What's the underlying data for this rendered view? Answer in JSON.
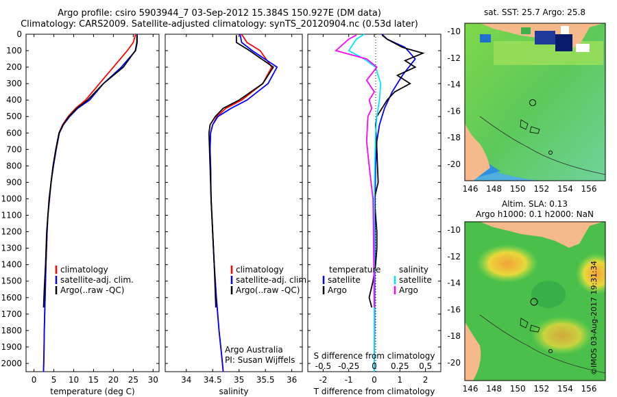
{
  "title": {
    "line1": "Argo profile: csiro 5903944_7 03-Sep-2012 15.384S 150.927E (DM data)",
    "line2": "Climatology: CARS2009. Satellite-adjusted climatology: synTS_20120904.nc (0.53d later)"
  },
  "stamp": "©IMOS 03-Aug-2017 19:31:34",
  "colors": {
    "clim": "#ff0000",
    "sat": "#0000ff",
    "argo": "#000000",
    "sat_s": "#00e5ff",
    "argo_s": "#ff00ff"
  },
  "chart_data": [
    {
      "type": "line",
      "name": "temperature-profile",
      "xlabel": "temperature (deg C)",
      "ylabel": "",
      "xlim": [
        -2,
        31.5
      ],
      "ylim": [
        2050,
        0
      ],
      "xticks": [
        "0",
        "5",
        "10",
        "15",
        "20",
        "25",
        "30"
      ],
      "yticks": [
        "0",
        "100",
        "200",
        "300",
        "400",
        "500",
        "600",
        "700",
        "800",
        "900",
        "1000",
        "1100",
        "1200",
        "1300",
        "1400",
        "1500",
        "1600",
        "1700",
        "1800",
        "1900",
        "2000"
      ],
      "legend": [
        "climatology",
        "satellite-adj. clim.",
        "Argo(..raw -QC)"
      ],
      "series": [
        {
          "name": "climatology",
          "color": "#ff0000",
          "x": [
            25.6,
            25.0,
            23.5,
            20.0,
            16.5,
            13.0,
            10.5,
            8.6,
            7.2,
            6.3,
            5.5,
            4.8,
            4.3,
            3.9,
            3.5,
            3.3,
            3.0,
            2.8,
            2.6,
            2.5,
            2.4
          ],
          "y": [
            0,
            50,
            100,
            200,
            300,
            400,
            450,
            500,
            550,
            600,
            700,
            800,
            900,
            1000,
            1100,
            1200,
            1400,
            1600,
            1800,
            1950,
            2050
          ]
        },
        {
          "name": "satellite-adj. clim.",
          "color": "#0000ff",
          "x": [
            26.0,
            26.0,
            25.6,
            22.0,
            17.5,
            14.0,
            11.0,
            9.0,
            7.4,
            6.4,
            5.6,
            4.9,
            4.3,
            3.9,
            3.5,
            3.3,
            3.0,
            2.8,
            2.6,
            2.5,
            2.4
          ],
          "y": [
            0,
            50,
            100,
            200,
            300,
            400,
            450,
            500,
            550,
            600,
            700,
            800,
            900,
            1000,
            1100,
            1200,
            1400,
            1600,
            1800,
            1950,
            2050
          ]
        },
        {
          "name": "Argo(..raw -QC)",
          "color": "#000000",
          "x": [
            25.9,
            25.9,
            25.5,
            22.5,
            17.5,
            13.5,
            10.8,
            8.8,
            7.3,
            6.3,
            5.5,
            4.8,
            4.3,
            3.8,
            3.5,
            3.2,
            2.9,
            2.6,
            2.4
          ],
          "y": [
            5,
            50,
            100,
            200,
            300,
            400,
            450,
            500,
            550,
            600,
            700,
            800,
            900,
            1000,
            1100,
            1200,
            1400,
            1550,
            1660
          ]
        }
      ]
    },
    {
      "type": "line",
      "name": "salinity-profile",
      "xlabel": "salinity",
      "xlim": [
        33.6,
        36.2
      ],
      "ylim": [
        2050,
        0
      ],
      "xticks": [
        "34",
        "34.5",
        "35",
        "35.5",
        "36"
      ],
      "legend": [
        "climatology",
        "satellite-adj. clim.",
        "Argo(..raw -QC)"
      ],
      "annotation": [
        "Argo Australia",
        "PI: Susan Wijffels"
      ],
      "series": [
        {
          "name": "climatology",
          "color": "#ff0000",
          "x": [
            35.05,
            35.15,
            35.4,
            35.62,
            35.45,
            35.05,
            34.75,
            34.58,
            34.5,
            34.46,
            34.45,
            34.46,
            34.47,
            34.5,
            34.53,
            34.57,
            34.62,
            34.67,
            34.7
          ],
          "y": [
            0,
            50,
            100,
            200,
            300,
            400,
            450,
            500,
            550,
            600,
            700,
            800,
            1000,
            1200,
            1400,
            1600,
            1800,
            1950,
            2050
          ]
        },
        {
          "name": "satellite-adj. clim.",
          "color": "#0000ff",
          "x": [
            35.02,
            35.05,
            35.25,
            35.72,
            35.55,
            35.15,
            34.85,
            34.6,
            34.5,
            34.46,
            34.45,
            34.46,
            34.47,
            34.5,
            34.53,
            34.57,
            34.62,
            34.67,
            34.7
          ],
          "y": [
            0,
            50,
            100,
            200,
            300,
            400,
            450,
            500,
            550,
            600,
            700,
            800,
            1000,
            1200,
            1400,
            1600,
            1800,
            1950,
            2050
          ]
        },
        {
          "name": "Argo(..raw -QC)",
          "color": "#000000",
          "x": [
            34.95,
            34.95,
            35.2,
            35.65,
            35.45,
            35.0,
            34.7,
            34.55,
            34.45,
            34.43,
            34.44,
            34.45,
            34.47,
            34.5,
            34.53,
            34.56
          ],
          "y": [
            5,
            50,
            100,
            200,
            300,
            400,
            450,
            500,
            550,
            600,
            700,
            800,
            1000,
            1200,
            1400,
            1660
          ]
        }
      ]
    },
    {
      "type": "line",
      "name": "difference-profile",
      "xlabel": "T difference from climatology",
      "xlabel_top": "S difference from climatology",
      "xlim": [
        -2.6,
        2.6
      ],
      "ylim": [
        2050,
        0
      ],
      "xticks": [
        "-2",
        "-1",
        "0",
        "1",
        "2"
      ],
      "xticks_top": [
        "-0.5",
        "-0.25",
        "0",
        "0.25",
        "0.5"
      ],
      "legend_titles": [
        "temperature",
        "salinity"
      ],
      "legend": [
        "satellite",
        "Argo",
        "satellite",
        "Argo"
      ],
      "series": [
        {
          "name": "T satellite",
          "color": "#0000ff",
          "x": [
            0.3,
            0.5,
            1.2,
            1.6,
            1.1,
            0.7,
            0.4,
            0.2,
            0.1,
            0.05,
            0.03,
            0.02,
            0.01,
            0.0
          ],
          "y": [
            0,
            30,
            80,
            150,
            250,
            350,
            450,
            550,
            650,
            800,
            1000,
            1400,
            1800,
            2050
          ]
        },
        {
          "name": "T Argo",
          "color": "#000000",
          "x": [
            0.3,
            0.5,
            1.1,
            1.9,
            1.2,
            1.6,
            0.9,
            1.4,
            0.8,
            0.5,
            0.3,
            0.1,
            0.05,
            0.1,
            0.15,
            0.0,
            0.05,
            0.1,
            0.1,
            0.05,
            -0.05,
            -0.2,
            -0.1
          ],
          "y": [
            5,
            30,
            80,
            115,
            160,
            200,
            250,
            300,
            350,
            400,
            450,
            500,
            550,
            700,
            900,
            1000,
            1100,
            1200,
            1300,
            1400,
            1500,
            1600,
            1660
          ]
        },
        {
          "name": "S satellite",
          "color": "#00e5ff",
          "x": [
            -0.4,
            -0.7,
            -1.0,
            -0.4,
            0.05,
            0.25,
            0.2,
            0.1,
            0.05,
            0.02,
            0.0,
            0.0,
            0.0
          ],
          "y": [
            0,
            30,
            100,
            150,
            200,
            300,
            400,
            500,
            600,
            800,
            1000,
            1500,
            2050
          ]
        },
        {
          "name": "S Argo",
          "color": "#ff00ff",
          "x": [
            -0.7,
            -1.0,
            -1.5,
            -0.3,
            0.1,
            -0.3,
            0.0,
            -0.2,
            -0.1,
            -0.25,
            -0.3,
            -0.2,
            -0.05,
            -0.02,
            0.0
          ],
          "y": [
            5,
            30,
            100,
            150,
            200,
            280,
            350,
            400,
            450,
            500,
            650,
            800,
            1000,
            1400,
            1660
          ]
        }
      ]
    }
  ],
  "maps": {
    "top": {
      "title": "sat. SST: 25.7  Argo: 25.8",
      "xticks": [
        "146",
        "148",
        "150",
        "152",
        "154",
        "156"
      ],
      "yticks": [
        "-10",
        "-12",
        "-14",
        "-16",
        "-18",
        "-20"
      ]
    },
    "bottom": {
      "title1": "Altim. SLA: 0.13",
      "title2": "Argo h1000: 0.1  h2000: NaN",
      "xticks": [
        "146",
        "148",
        "150",
        "152",
        "154",
        "156"
      ],
      "yticks": [
        "-10",
        "-12",
        "-14",
        "-16",
        "-18",
        "-20"
      ]
    }
  }
}
